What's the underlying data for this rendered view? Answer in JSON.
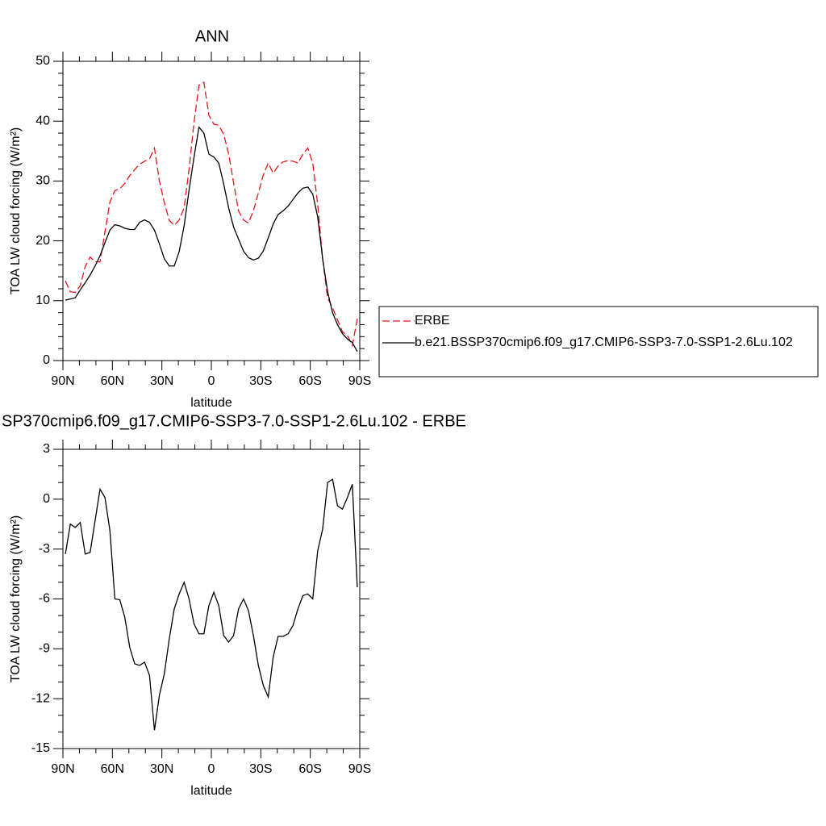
{
  "chart_data": [
    {
      "type": "line",
      "title": "ANN",
      "xlabel": "latitude",
      "ylabel": "TOA LW cloud forcing (W/m²)",
      "x": [
        88.5,
        85.5,
        82.5,
        79.5,
        76.5,
        73.5,
        70.5,
        67.5,
        64.5,
        61.5,
        58.5,
        55.5,
        52.5,
        49.5,
        46.5,
        43.5,
        40.5,
        37.5,
        34.5,
        31.5,
        28.5,
        25.5,
        22.5,
        19.5,
        16.5,
        13.5,
        10.5,
        7.5,
        4.5,
        1.5,
        -1.5,
        -4.5,
        -7.5,
        -10.5,
        -13.5,
        -16.5,
        -19.5,
        -22.5,
        -25.5,
        -28.5,
        -31.5,
        -34.5,
        -37.5,
        -40.5,
        -43.5,
        -46.5,
        -49.5,
        -52.5,
        -55.5,
        -58.5,
        -61.5,
        -64.5,
        -67.5,
        -70.5,
        -73.5,
        -76.5,
        -79.5,
        -82.5,
        -85.5,
        -88.5
      ],
      "series": [
        {
          "name": "ERBE",
          "color": "#e8141b",
          "linestyle": "dashed",
          "values": [
            13.3,
            11.5,
            11.4,
            12.5,
            15.7,
            17.3,
            16.5,
            16.5,
            21.5,
            26.5,
            28.4,
            28.7,
            29.6,
            30.9,
            31.9,
            32.8,
            33.3,
            33.7,
            35.5,
            30,
            26.4,
            23.4,
            22.6,
            23.5,
            25.5,
            32,
            39.8,
            46,
            46.5,
            41,
            39.5,
            39.3,
            37.8,
            34.5,
            29.7,
            25,
            23.5,
            23,
            25,
            28,
            31,
            33,
            31.3,
            32.5,
            33.2,
            33.4,
            33.3,
            33,
            34.5,
            35.5,
            33,
            26,
            17,
            10.5,
            8.8,
            6.8,
            4.8,
            4.2,
            2.5,
            7
          ]
        },
        {
          "name": "b.e21.BSSP370cmip6.f09_g17.CMIP6-SSP3-7.0-SSP1-2.6Lu.102",
          "color": "#000000",
          "linestyle": "solid",
          "values": [
            10.1,
            10.3,
            10.5,
            11.8,
            13,
            14.3,
            15.8,
            17.5,
            19.7,
            21.8,
            22.7,
            22.5,
            22.1,
            21.9,
            21.9,
            23.1,
            23.5,
            23.1,
            21.8,
            19.5,
            17,
            15.8,
            15.8,
            18.2,
            22.5,
            28.5,
            34,
            39,
            38,
            34.5,
            34,
            33,
            29.5,
            25.5,
            22.3,
            20.3,
            18.3,
            17.2,
            16.8,
            17.1,
            18.3,
            20.5,
            22.8,
            24.4,
            25,
            25.8,
            26.9,
            28,
            28.8,
            29,
            27.8,
            24,
            17,
            11.5,
            8,
            6,
            4.5,
            3.6,
            3,
            1.5
          ]
        }
      ],
      "xlim": [
        90,
        -90
      ],
      "xticks": [
        {
          "value": 90,
          "label": "90N"
        },
        {
          "value": 60,
          "label": "60N"
        },
        {
          "value": 30,
          "label": "30N"
        },
        0,
        {
          "value": -30,
          "label": "30S"
        },
        {
          "value": -60,
          "label": "60S"
        },
        {
          "value": -90,
          "label": "90S"
        }
      ],
      "ylim": [
        0,
        50
      ],
      "yticks": [
        0,
        10,
        20,
        30,
        40,
        50
      ],
      "legend": "right"
    },
    {
      "type": "line",
      "title": "SP370cmip6.f09_g17.CMIP6-SSP3-7.0-SSP1-2.6Lu.102 - ERBE",
      "xlabel": "latitude",
      "ylabel": "TOA LW cloud forcing (W/m²)",
      "x": [
        88.5,
        85.5,
        82.5,
        79.5,
        76.5,
        73.5,
        70.5,
        67.5,
        64.5,
        61.5,
        58.5,
        55.5,
        52.5,
        49.5,
        46.5,
        43.5,
        40.5,
        37.5,
        34.5,
        31.5,
        28.5,
        25.5,
        22.5,
        19.5,
        16.5,
        13.5,
        10.5,
        7.5,
        4.5,
        1.5,
        -1.5,
        -4.5,
        -7.5,
        -10.5,
        -13.5,
        -16.5,
        -19.5,
        -22.5,
        -25.5,
        -28.5,
        -31.5,
        -34.5,
        -37.5,
        -40.5,
        -43.5,
        -46.5,
        -49.5,
        -52.5,
        -55.5,
        -58.5,
        -61.5,
        -64.5,
        -67.5,
        -70.5,
        -73.5,
        -76.5,
        -79.5,
        -82.5,
        -85.5,
        -88.5
      ],
      "series": [
        {
          "color": "#000000",
          "linestyle": "solid",
          "values": [
            -3.3,
            -1.5,
            -1.7,
            -1.4,
            -3.3,
            -3.2,
            -1.3,
            0.6,
            0.1,
            -1.9,
            -6,
            -6.05,
            -7.1,
            -8.9,
            -9.9,
            -10,
            -9.8,
            -10.6,
            -13.9,
            -11.8,
            -10.5,
            -8.4,
            -6.6,
            -5.7,
            -5,
            -6,
            -7.5,
            -8.1,
            -8.1,
            -6.4,
            -5.6,
            -6.4,
            -8.2,
            -8.6,
            -8.2,
            -6.6,
            -6,
            -6.7,
            -8.2,
            -10,
            -11.2,
            -11.9,
            -9.5,
            -8.25,
            -8.25,
            -8.1,
            -7.6,
            -6.6,
            -5.8,
            -5.7,
            -6,
            -3.1,
            -1.8,
            1,
            1.2,
            -0.4,
            -0.6,
            0.1,
            0.9,
            -5.3
          ]
        }
      ],
      "xlim": [
        90,
        -90
      ],
      "xticks": [
        {
          "value": 90,
          "label": "90N"
        },
        {
          "value": 60,
          "label": "60N"
        },
        {
          "value": 30,
          "label": "30N"
        },
        0,
        {
          "value": -30,
          "label": "30S"
        },
        {
          "value": -60,
          "label": "60S"
        },
        {
          "value": -90,
          "label": "90S"
        }
      ],
      "ylim": [
        -15,
        3
      ],
      "yticks": [
        -15,
        -12,
        -9,
        -6,
        -3,
        0,
        3
      ]
    }
  ]
}
